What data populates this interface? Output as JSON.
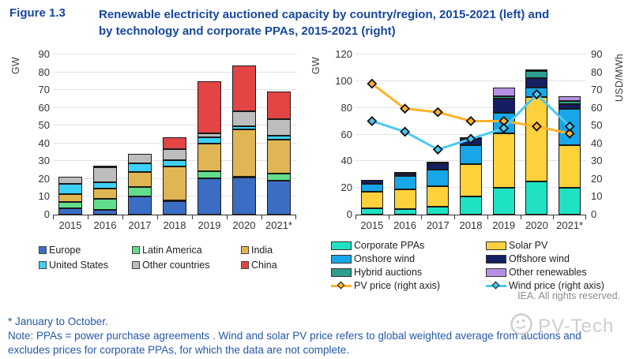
{
  "header": {
    "figure_label": "Figure 1.3",
    "title": "Renewable electricity auctioned capacity by country/region, 2015-2021 (left) and by technology and corporate PPAs, 2015-2021 (right)"
  },
  "colors": {
    "title_blue": "#17479E",
    "note_blue": "#2458A8",
    "axis_text": "#333333",
    "grid": "#E2E2E2",
    "iea_gray": "#8C8C8C",
    "watermark_gray": "#C3C3C3"
  },
  "chart_data": [
    {
      "id": "left",
      "type": "bar",
      "stacked": true,
      "ylabel": "GW",
      "categories": [
        "2015",
        "2016",
        "2017",
        "2018",
        "2019",
        "2020",
        "2021*"
      ],
      "ylim": [
        0,
        90
      ],
      "yticks": [
        0,
        10,
        20,
        30,
        40,
        50,
        60,
        70,
        80,
        90
      ],
      "grid": true,
      "legend_position": "bottom",
      "series": [
        {
          "name": "Europe",
          "color": "#3B6DC5",
          "values": [
            3.5,
            2.8,
            10.3,
            7.5,
            20.3,
            21.0,
            19.0
          ]
        },
        {
          "name": "Latin America",
          "color": "#63DD8C",
          "values": [
            3.5,
            6.0,
            5.2,
            0.5,
            4.2,
            0.5,
            4.0
          ]
        },
        {
          "name": "India",
          "color": "#E0B654",
          "values": [
            4.5,
            5.7,
            8.5,
            19.0,
            15.5,
            26.5,
            19.0
          ]
        },
        {
          "name": "United States",
          "color": "#3FD0F7",
          "values": [
            6.0,
            3.5,
            5.0,
            3.5,
            3.5,
            1.5,
            2.5
          ]
        },
        {
          "name": "Other countries",
          "color": "#BDBDBD",
          "values": [
            4.0,
            8.5,
            5.0,
            6.5,
            2.0,
            8.5,
            9.0
          ]
        },
        {
          "name": "China",
          "color": "#E34545",
          "values": [
            0,
            1.0,
            0,
            6.5,
            29.5,
            26.0,
            15.5
          ]
        }
      ],
      "legend_rows": [
        [
          "Europe",
          "Latin America",
          "India"
        ],
        [
          "United States",
          "Other countries",
          "China"
        ]
      ]
    },
    {
      "id": "right",
      "type": "bar",
      "stacked": true,
      "ylabel": "GW",
      "y2label": "USD/MWh",
      "categories": [
        "2015",
        "2016",
        "2017",
        "2018",
        "2019",
        "2020",
        "2021*"
      ],
      "ylim": [
        0,
        120
      ],
      "yticks": [
        0,
        20,
        40,
        60,
        80,
        100,
        120
      ],
      "y2lim": [
        0,
        90
      ],
      "y2ticks": [
        0,
        10,
        20,
        30,
        40,
        50,
        60,
        70,
        80,
        90
      ],
      "grid": true,
      "legend_position": "bottom",
      "series": [
        {
          "name": "Corporate PPAs",
          "color": "#1FE2C4",
          "values": [
            4.5,
            4.0,
            6.0,
            13.5,
            20.0,
            25.0,
            20.0
          ]
        },
        {
          "name": "Solar PV",
          "color": "#FCD13B",
          "values": [
            12.5,
            15.0,
            15.0,
            24.5,
            41.0,
            63.0,
            32.0
          ]
        },
        {
          "name": "Onshore wind",
          "color": "#17A7E8",
          "values": [
            6.0,
            10.0,
            12.5,
            14.0,
            15.5,
            7.0,
            27.5
          ]
        },
        {
          "name": "Offshore wind",
          "color": "#141F63",
          "values": [
            3.0,
            2.0,
            5.0,
            4.5,
            10.5,
            7.0,
            3.0
          ]
        },
        {
          "name": "Hybrid auctions",
          "color": "#2F9E8F",
          "values": [
            0,
            0,
            0,
            0,
            1.5,
            5.5,
            2.5
          ]
        },
        {
          "name": "Other renewables",
          "color": "#B590E2",
          "values": [
            0,
            0.5,
            1.0,
            0.5,
            6.5,
            1.5,
            3.5
          ]
        }
      ],
      "lines": [
        {
          "name": "PV price (right axis)",
          "color": "#FFB32A",
          "axis": "y2",
          "values": [
            74,
            60,
            58,
            53,
            53,
            50,
            46
          ]
        },
        {
          "name": "Wind price (right axis)",
          "color": "#4AC9F7",
          "axis": "y2",
          "values": [
            53,
            47,
            37,
            43,
            49,
            68,
            50
          ]
        }
      ],
      "legend_rows": [
        [
          "Corporate PPAs",
          "Solar PV"
        ],
        [
          "Onshore wind",
          "Offshore wind"
        ],
        [
          "Hybrid auctions",
          "Other renewables"
        ],
        [
          "PV price (right axis)",
          "Wind price (right axis)"
        ]
      ]
    }
  ],
  "attribution": "IEA. All rights reserved.",
  "footnotes": {
    "asterisk": "* January to October.",
    "note": "Note: PPAs = power purchase agreements . Wind and solar PV price refers to global weighted average from auctions and excludes prices for corporate PPAs, for which the data are not complete."
  },
  "watermark": "PV-Tech"
}
